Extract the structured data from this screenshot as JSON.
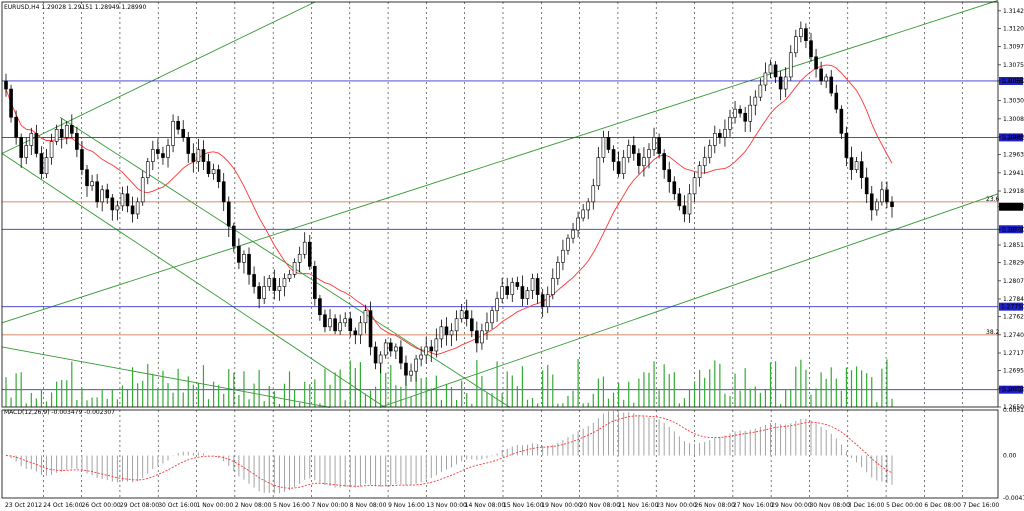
{
  "chart_data": [
    {
      "type": "candlestick",
      "title": "EURUSD,H4  1.29028 1.29151 1.28949 1.28990",
      "symbol": "EURUSD",
      "timeframe": "H4",
      "ohlc_header": "1.29028 1.29151 1.28949 1.28990",
      "current_price_label": "1.28990",
      "y_ticks": [
        "1.31420",
        "1.31200",
        "1.30975",
        "1.30750",
        "1.30550",
        "1.30305",
        "1.30080",
        "1.29855",
        "1.29635",
        "1.29410",
        "1.29185",
        "1.28990",
        "1.28710",
        "1.28515",
        "1.28295",
        "1.28070",
        "1.27845",
        "1.27625",
        "1.27400",
        "1.27175",
        "1.26955",
        "1.26730",
        "1.26505"
      ],
      "ylim": [
        1.26505,
        1.3153
      ],
      "horizontal_levels": [
        {
          "value": 1.3055,
          "label": "1.30550",
          "color": "#3333cc"
        },
        {
          "value": 1.2985,
          "label": "1.29855",
          "color": "#3333cc"
        },
        {
          "value": 1.2871,
          "label": "1.28710",
          "color": "#3333cc"
        },
        {
          "value": 1.2775,
          "label": "1.27750",
          "color": "#3333cc"
        },
        {
          "value": 1.2672,
          "label": "1.26720",
          "color": "#3333cc"
        }
      ],
      "fib_levels": [
        {
          "value": 1.2905,
          "label": "23.6",
          "color": "#cc6633"
        },
        {
          "value": 1.274,
          "label": "38.2",
          "color": "#cc6633"
        }
      ],
      "x_ticks": [
        "23 Oct 2012",
        "24 Oct 16:00",
        "26 Oct 00:00",
        "29 Oct 08:00",
        "30 Oct 16:00",
        "1 Nov 00:00",
        "2 Nov 08:00",
        "5 Nov 16:00",
        "7 Nov 00:00",
        "8 Nov 08:00",
        "9 Nov 16:00",
        "13 Nov 00:00",
        "14 Nov 08:00",
        "15 Nov 16:00",
        "19 Nov 00:00",
        "20 Nov 08:00",
        "21 Nov 16:00",
        "23 Nov 00:00",
        "26 Nov 08:00",
        "27 Nov 16:00",
        "29 Nov 00:00",
        "30 Nov 08:00",
        "3 Dec 16:00",
        "5 Dec 00:00",
        "6 Dec 08:00",
        "7 Dec 16:00"
      ],
      "closes": [
        1.3045,
        1.301,
        1.2985,
        1.296,
        1.2975,
        1.299,
        1.2965,
        1.294,
        1.296,
        1.298,
        1.2995,
        1.2985,
        1.3,
        1.299,
        1.297,
        1.2945,
        1.2925,
        1.293,
        1.2905,
        1.292,
        1.291,
        1.2895,
        1.29,
        1.2915,
        1.29,
        1.289,
        1.2905,
        1.2935,
        1.2955,
        1.297,
        1.2965,
        1.296,
        1.2975,
        1.3005,
        1.2995,
        1.2985,
        1.2965,
        1.2955,
        1.297,
        1.2955,
        1.294,
        1.2945,
        1.293,
        1.2905,
        1.2875,
        1.285,
        1.283,
        1.284,
        1.2815,
        1.28,
        1.2785,
        1.28,
        1.281,
        1.2795,
        1.28,
        1.281,
        1.2815,
        1.283,
        1.284,
        1.2855,
        1.2825,
        1.2785,
        1.2765,
        1.275,
        1.276,
        1.2745,
        1.2755,
        1.276,
        1.2745,
        1.274,
        1.2755,
        1.277,
        1.2725,
        1.2705,
        1.2715,
        1.273,
        1.272,
        1.2725,
        1.2705,
        1.269,
        1.2695,
        1.271,
        1.2715,
        1.2725,
        1.272,
        1.2735,
        1.275,
        1.274,
        1.2745,
        1.276,
        1.277,
        1.276,
        1.2745,
        1.273,
        1.2745,
        1.2755,
        1.277,
        1.2785,
        1.28,
        1.279,
        1.2805,
        1.28,
        1.2785,
        1.2795,
        1.281,
        1.279,
        1.2775,
        1.279,
        1.281,
        1.283,
        1.2845,
        1.286,
        1.287,
        1.2885,
        1.2895,
        1.2905,
        1.2925,
        1.296,
        1.2985,
        1.297,
        1.2955,
        1.294,
        1.296,
        1.2975,
        1.2965,
        1.295,
        1.296,
        1.297,
        1.2985,
        1.2965,
        1.2945,
        1.293,
        1.2915,
        1.29,
        1.289,
        1.2915,
        1.2935,
        1.295,
        1.296,
        1.2975,
        1.299,
        1.2985,
        1.2995,
        1.301,
        1.302,
        1.3015,
        1.3005,
        1.3025,
        1.3035,
        1.305,
        1.3065,
        1.3075,
        1.306,
        1.3045,
        1.306,
        1.309,
        1.311,
        1.312,
        1.3105,
        1.3085,
        1.307,
        1.3055,
        1.306,
        1.304,
        1.302,
        1.299,
        1.296,
        1.2945,
        1.2955,
        1.2935,
        1.2915,
        1.2895,
        1.2905,
        1.292,
        1.2905,
        1.2899
      ],
      "ma_color": "#ff3333",
      "macd": {
        "label": "MACD(12,26,9) -0.003479 -0.002307",
        "y_ticks": [
          "0.005110",
          "0.00",
          "-0.004767"
        ],
        "ylim": [
          -0.004767,
          0.00511
        ],
        "histogram_color": "#999999",
        "signal_color": "#ff3333"
      }
    }
  ]
}
